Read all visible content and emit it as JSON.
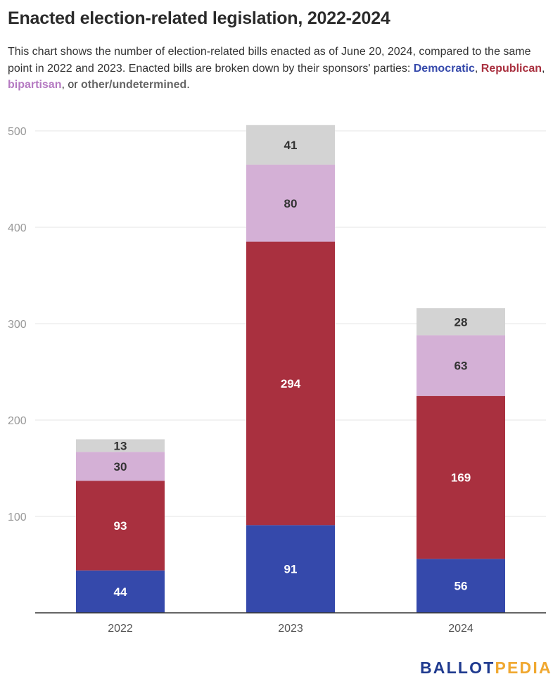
{
  "title": "Enacted election-related legislation, 2022-2024",
  "subtitle": {
    "intro": "This chart shows the number of election-related bills enacted as of June 20, 2024, compared to the same point in 2022 and 2023. Enacted bills are broken down by their sponsors' parties: ",
    "sep1": ", ",
    "sep2": ", ",
    "sep3": ", or ",
    "end": "."
  },
  "colors": {
    "Democratic": "#3549ab",
    "Republican": "#a9303f",
    "bipartisan": "#d4b0d6",
    "other/undetermined": "#d3d3d3",
    "bipartisan_text": "#b57ac2",
    "other_text": "#666666",
    "grid": "#e4e4e4",
    "axis": "#333333",
    "tick": "#999999"
  },
  "chart_data": {
    "type": "bar",
    "stacked": true,
    "categories": [
      "2022",
      "2023",
      "2024"
    ],
    "series": [
      {
        "name": "Democratic",
        "values": [
          44,
          91,
          56
        ]
      },
      {
        "name": "Republican",
        "values": [
          93,
          294,
          169
        ]
      },
      {
        "name": "bipartisan",
        "values": [
          30,
          80,
          63
        ]
      },
      {
        "name": "other/undetermined",
        "values": [
          13,
          41,
          28
        ]
      }
    ],
    "yticks": [
      100,
      200,
      300,
      400,
      500
    ],
    "ylim": [
      0,
      500
    ],
    "grid": true,
    "legend": "inline in subtitle"
  },
  "brand": {
    "part1": "BALLOT",
    "part2": "PEDIA"
  }
}
